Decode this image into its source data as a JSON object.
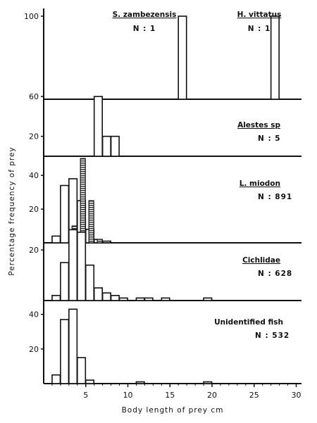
{
  "chart_data": {
    "type": "bar",
    "xlabel": "Body length of prey cm",
    "ylabel": "Percentage frequency of prey",
    "x_ticks": [
      "5",
      "10",
      "15",
      "20",
      "25",
      "30"
    ],
    "xlim": [
      0,
      30
    ],
    "bin_width_cm": 1,
    "panels": [
      {
        "name": "S. zambezensis / H. vittatus",
        "labels": [
          {
            "name": "S. zambezensis",
            "n": "N : 1"
          },
          {
            "name": "H. vittatus",
            "n": "N : 1"
          }
        ],
        "ylim": [
          0,
          100
        ],
        "y_ticks": [
          "100"
        ],
        "bars": [
          {
            "x": 16,
            "value": 100
          },
          {
            "x": 27,
            "value": 100
          }
        ]
      },
      {
        "name": "Alestes sp",
        "n": "N : 5",
        "ylim": [
          0,
          65
        ],
        "y_ticks": [
          "20",
          "60"
        ],
        "bars": [
          {
            "x": 6,
            "value": 60
          },
          {
            "x": 7,
            "value": 20
          },
          {
            "x": 8,
            "value": 20
          }
        ]
      },
      {
        "name": "L. miodon",
        "n": "N : 891",
        "ylim": [
          0,
          48
        ],
        "y_ticks": [
          "20",
          "40"
        ],
        "bars": [
          {
            "x": 1,
            "value": 4
          },
          {
            "x": 2,
            "value": 34
          },
          {
            "x": 3,
            "value": 38
          },
          {
            "x": 4,
            "value": 25
          },
          {
            "x": 5,
            "value": 8
          },
          {
            "x": 6,
            "value": 2
          },
          {
            "x": 7,
            "value": 1
          }
        ],
        "hatched_series": [
          {
            "x": 3.2,
            "value": 10
          },
          {
            "x": 4.2,
            "value": 50
          },
          {
            "x": 5.2,
            "value": 25
          },
          {
            "x": 6.2,
            "value": 2
          }
        ]
      },
      {
        "name": "Cichlidae",
        "n": "N : 628",
        "ylim": [
          0,
          32
        ],
        "y_ticks": [
          "20"
        ],
        "bars": [
          {
            "x": 1,
            "value": 2
          },
          {
            "x": 2,
            "value": 15
          },
          {
            "x": 3,
            "value": 28
          },
          {
            "x": 4,
            "value": 27
          },
          {
            "x": 5,
            "value": 14
          },
          {
            "x": 6,
            "value": 5
          },
          {
            "x": 7,
            "value": 3
          },
          {
            "x": 8,
            "value": 2
          },
          {
            "x": 9,
            "value": 1
          },
          {
            "x": 11,
            "value": 1
          },
          {
            "x": 12,
            "value": 1
          },
          {
            "x": 14,
            "value": 1
          },
          {
            "x": 19,
            "value": 1
          }
        ]
      },
      {
        "name": "Unidentified fish",
        "n": "N : 532",
        "ylim": [
          0,
          48
        ],
        "y_ticks": [
          "20",
          "40"
        ],
        "bars": [
          {
            "x": 1,
            "value": 5
          },
          {
            "x": 2,
            "value": 37
          },
          {
            "x": 3,
            "value": 43
          },
          {
            "x": 4,
            "value": 15
          },
          {
            "x": 5,
            "value": 2
          },
          {
            "x": 11,
            "value": 1
          },
          {
            "x": 19,
            "value": 1
          }
        ]
      }
    ]
  }
}
